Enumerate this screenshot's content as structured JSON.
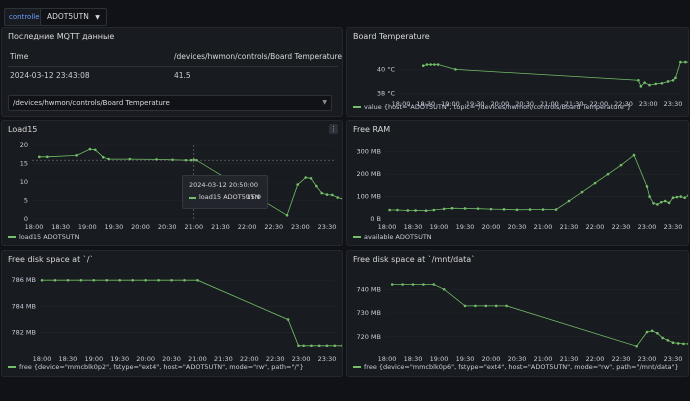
{
  "header": {
    "variable_label": "controller",
    "variable_value": "ADOT5UTN",
    "chevron_icon": "chevron-down-icon"
  },
  "colors": {
    "series": "#73bf69",
    "background": "#111217",
    "panel": "#181b1f",
    "accent": "#6e9fff"
  },
  "mqtt_panel": {
    "title": "Последние MQTT данные",
    "columns": [
      "Time",
      "/devices/hwmon/controls/Board Temperature"
    ],
    "rows": [
      [
        "2024-03-12 23:43:08",
        "41.5"
      ]
    ],
    "select_value": "/devices/hwmon/controls/Board Temperature"
  },
  "board_temp": {
    "title": "Board Temperature",
    "legend": "value {host=\"ADOT5UTN\", topic=\"/devices/hwmon/controls/Board Temperature\"}"
  },
  "load15": {
    "title": "Load15",
    "legend": "load15 ADOT5UTN",
    "menu_icon": "more-vertical-icon",
    "tooltip": {
      "time": "2024-03-12 20:50:00",
      "series": "load15 ADOT5UTN",
      "value": "15.9"
    }
  },
  "free_ram": {
    "title": "Free RAM",
    "legend": "available ADOT5UTN"
  },
  "disk_root": {
    "title": "Free disk space at `/`",
    "legend": "free {device=\"mmcblk0p2\", fstype=\"ext4\", host=\"ADOT5UTN\", mode=\"rw\", path=\"/\"}"
  },
  "disk_data": {
    "title": "Free disk space at `/mnt/data`",
    "legend": "free {device=\"mmcblk0p6\", fstype=\"ext4\", host=\"ADOT5UTN\", mode=\"rw\", path=\"/mnt/data\"}"
  },
  "chart_data": [
    {
      "type": "line",
      "title": "Board Temperature",
      "x_ticks": [
        "18:00",
        "18:30",
        "19:00",
        "19:30",
        "20:00",
        "20:30",
        "21:00",
        "21:30",
        "22:00",
        "22:30",
        "23:00",
        "23:30"
      ],
      "y_ticks": [
        "38 °C",
        "40 °C"
      ],
      "ylim": [
        37.8,
        41.6
      ],
      "x": [
        0.9,
        1.05,
        1.2,
        1.35,
        1.5,
        2.2,
        9.6,
        9.7,
        9.85,
        10.05,
        10.3,
        10.55,
        10.8,
        11.0,
        11.1,
        11.3,
        11.5,
        11.7,
        11.8
      ],
      "values": [
        40.3,
        40.4,
        40.4,
        40.4,
        40.4,
        40.0,
        39.1,
        38.6,
        38.9,
        38.7,
        38.8,
        38.85,
        39.0,
        39.1,
        39.3,
        40.6,
        40.6,
        40.6,
        40.6
      ],
      "series": [
        {
          "name": "value {host=\"ADOT5UTN\", topic=\"/devices/hwmon/controls/Board Temperature\"}"
        }
      ]
    },
    {
      "type": "line",
      "title": "Load15",
      "x_ticks": [
        "18:00",
        "18:30",
        "19:00",
        "19:30",
        "20:00",
        "20:30",
        "21:00",
        "21:30",
        "22:00",
        "22:30",
        "23:00",
        "23:30"
      ],
      "y_ticks": [
        "0",
        "5",
        "10",
        "15",
        "20"
      ],
      "ylim": [
        0,
        20
      ],
      "x": [
        0.2,
        0.5,
        1.6,
        2.1,
        2.3,
        2.6,
        2.8,
        3.6,
        4.6,
        5.2,
        5.7,
        5.9,
        6.0,
        6.1,
        9.5,
        9.9,
        10.2,
        10.4,
        10.6,
        10.8,
        11.0,
        11.2,
        11.4,
        11.6,
        11.8
      ],
      "values": [
        16.8,
        16.8,
        17.2,
        18.9,
        18.7,
        16.7,
        16.2,
        16.2,
        16.1,
        16.0,
        15.9,
        15.9,
        16.0,
        15.9,
        1.0,
        9.3,
        11.2,
        11.0,
        8.9,
        7.0,
        6.6,
        6.5,
        5.8,
        5.4,
        5.2
      ],
      "series": [
        {
          "name": "load15 ADOT5UTN"
        }
      ]
    },
    {
      "type": "line",
      "title": "Free RAM",
      "x_ticks": [
        "18:00",
        "18:30",
        "19:00",
        "19:30",
        "20:00",
        "20:30",
        "21:00",
        "21:30",
        "22:00",
        "22:30",
        "23:00",
        "23:30"
      ],
      "y_ticks": [
        "0 B",
        "100 MB",
        "200 MB",
        "300 MB"
      ],
      "ylim": [
        0,
        330
      ],
      "x": [
        0.1,
        0.4,
        0.8,
        1.1,
        1.5,
        1.8,
        2.2,
        2.5,
        3.0,
        3.5,
        4.0,
        4.5,
        5.0,
        5.5,
        6.0,
        6.5,
        7.0,
        7.5,
        8.0,
        8.5,
        9.0,
        9.5,
        10.0,
        10.1,
        10.25,
        10.4,
        10.55,
        10.7,
        10.85,
        11.0,
        11.15,
        11.3,
        11.45,
        11.6,
        11.75,
        11.9
      ],
      "values": [
        40,
        40,
        38,
        38,
        37,
        40,
        45,
        48,
        47,
        46,
        44,
        43,
        41,
        42,
        42,
        42,
        80,
        120,
        160,
        200,
        240,
        285,
        145,
        100,
        70,
        65,
        75,
        80,
        72,
        95,
        98,
        100,
        95,
        105,
        102,
        108
      ],
      "series": [
        {
          "name": "available ADOT5UTN"
        }
      ]
    },
    {
      "type": "line",
      "title": "Free disk space at `/`",
      "x_ticks": [
        "18:00",
        "18:30",
        "19:00",
        "19:30",
        "20:00",
        "20:30",
        "21:00",
        "21:30",
        "22:00",
        "22:30",
        "23:00",
        "23:30"
      ],
      "y_ticks": [
        "782 MB",
        "784 MB",
        "786 MB"
      ],
      "ylim": [
        780.6,
        786.4
      ],
      "x": [
        0.0,
        0.5,
        1.0,
        1.5,
        2.0,
        2.5,
        3.0,
        3.5,
        4.0,
        4.5,
        5.0,
        5.5,
        6.0,
        9.5,
        9.9,
        10.1,
        10.4,
        10.7,
        11.0,
        11.3,
        11.6,
        11.9
      ],
      "values": [
        786,
        786,
        786,
        786,
        786,
        786,
        786,
        786,
        786,
        786,
        786,
        786,
        786,
        783,
        781,
        781,
        781,
        781,
        781,
        781,
        781,
        781
      ],
      "series": [
        {
          "name": "free {device=\"mmcblk0p2\", fstype=\"ext4\", host=\"ADOT5UTN\", mode=\"rw\", path=\"/\"}"
        }
      ]
    },
    {
      "type": "line",
      "title": "Free disk space at `/mnt/data`",
      "x_ticks": [
        "18:00",
        "18:30",
        "19:00",
        "19:30",
        "20:00",
        "20:30",
        "21:00",
        "21:30",
        "22:00",
        "22:30",
        "23:00",
        "23:30"
      ],
      "y_ticks": [
        "720 MB",
        "730 MB",
        "740 MB"
      ],
      "ylim": [
        714,
        746
      ],
      "x": [
        0.2,
        0.6,
        1.0,
        1.4,
        1.8,
        2.2,
        3.0,
        3.4,
        3.8,
        4.2,
        4.6,
        9.6,
        10.0,
        10.2,
        10.4,
        10.6,
        10.8,
        11.0,
        11.2,
        11.4,
        11.6,
        11.8
      ],
      "values": [
        742,
        742,
        742,
        742,
        742,
        740,
        733,
        733,
        733,
        733,
        733,
        716,
        722,
        722.5,
        721.5,
        719.5,
        718.5,
        717.5,
        717.2,
        717.0,
        717.0,
        716.8
      ],
      "series": [
        {
          "name": "free {device=\"mmcblk0p6\", fstype=\"ext4\", host=\"ADOT5UTN\", mode=\"rw\", path=\"/mnt/data\"}"
        }
      ]
    }
  ]
}
